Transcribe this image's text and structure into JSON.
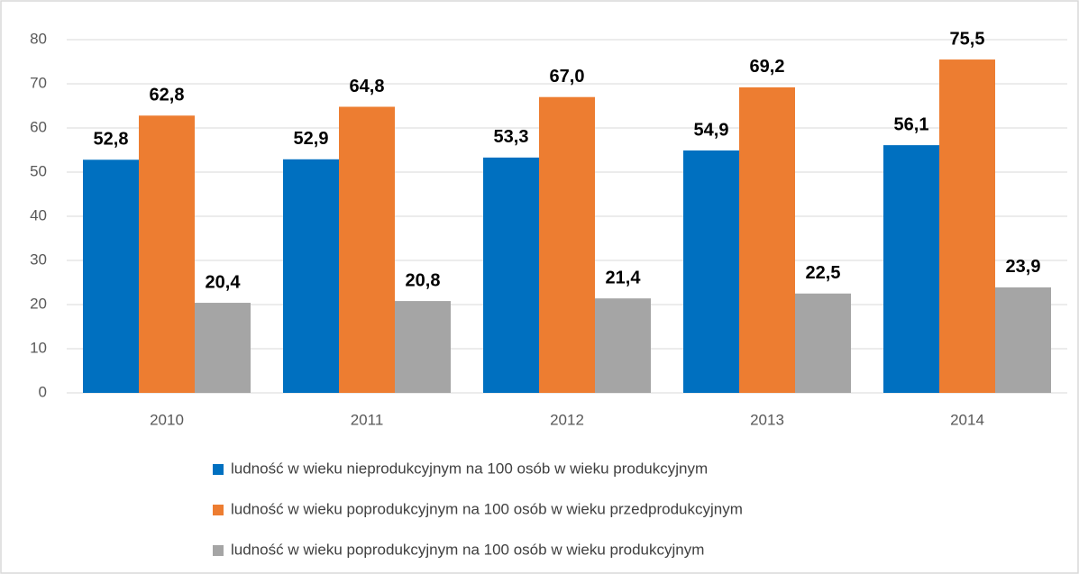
{
  "chart_data": {
    "type": "bar",
    "categories": [
      "2010",
      "2011",
      "2012",
      "2013",
      "2014"
    ],
    "series": [
      {
        "name": "ludność w wieku nieprodukcyjnym na 100 osób w wieku produkcyjnym",
        "color": "#0070c0",
        "values": [
          52.8,
          52.9,
          53.3,
          54.9,
          56.1
        ],
        "value_labels": [
          "52,8",
          "52,9",
          "53,3",
          "54,9",
          "56,1"
        ]
      },
      {
        "name": "ludność w wieku poprodukcyjnym na 100 osób w wieku przedprodukcyjnym",
        "color": "#ed7d31",
        "values": [
          62.8,
          64.8,
          67.0,
          69.2,
          75.5
        ],
        "value_labels": [
          "62,8",
          "64,8",
          "67,0",
          "69,2",
          "75,5"
        ]
      },
      {
        "name": "ludność w wieku poprodukcyjnym na 100 osób w wieku produkcyjnym",
        "color": "#a5a5a5",
        "values": [
          20.4,
          20.8,
          21.4,
          22.5,
          23.9
        ],
        "value_labels": [
          "20,4",
          "20,8",
          "21,4",
          "22,5",
          "23,9"
        ]
      }
    ],
    "ylim": [
      0,
      80
    ],
    "yticks": [
      0,
      10,
      20,
      30,
      40,
      50,
      60,
      70,
      80
    ],
    "grid": true,
    "legend": "bottom"
  }
}
